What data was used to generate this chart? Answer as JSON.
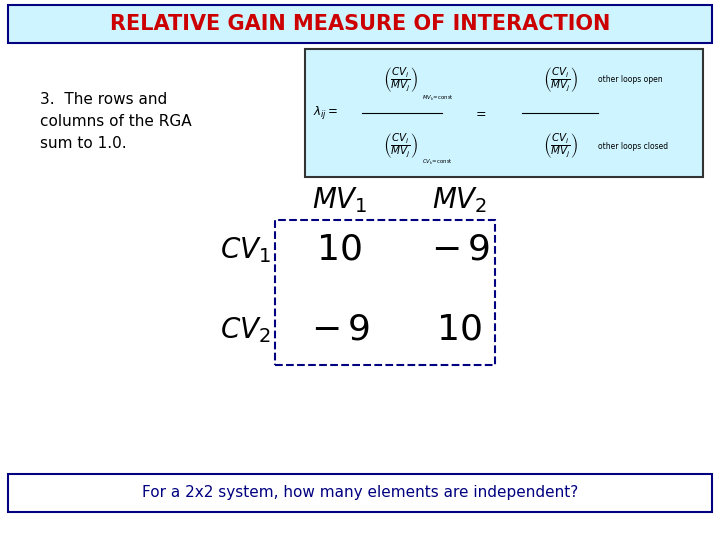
{
  "title": "RELATIVE GAIN MEASURE OF INTERACTION",
  "title_color": "#cc0000",
  "title_bg": "#cef5ff",
  "title_border": "#000080",
  "bg_color": "#ffffff",
  "point3_text": "3.  The rows and\ncolumns of the RGA\nsum to 1.0.",
  "point3_color": "#000000",
  "formula_box_bg": "#cef5ff",
  "formula_box_border": "#333333",
  "matrix_values": [
    [
      10,
      -9
    ],
    [
      -9,
      10
    ]
  ],
  "row_labels": [
    "$CV_1$",
    "$CV_2$"
  ],
  "col_labels": [
    "$MV_1$",
    "$MV_2$"
  ],
  "bottom_text": "For a 2x2 system, how many elements are independent?",
  "bottom_text_color": "#000080",
  "bottom_box_border": "#000080",
  "matrix_border_color": "#000080",
  "matrix_text_color": "#000000",
  "label_color": "#000000"
}
